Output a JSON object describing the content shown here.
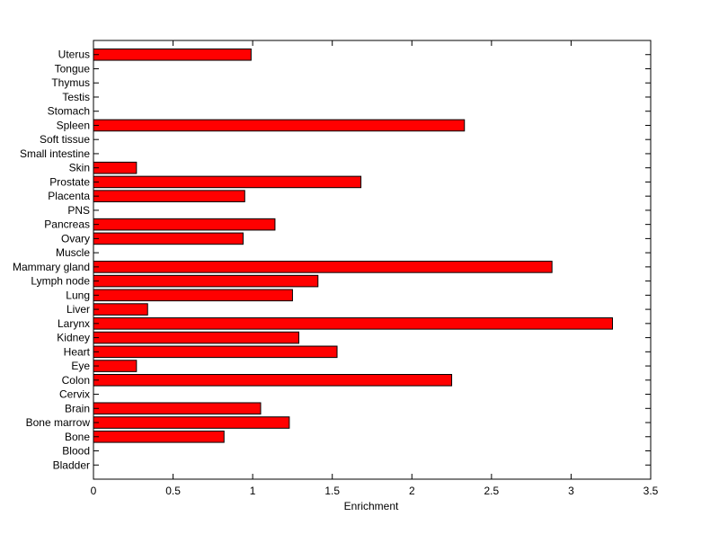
{
  "chart_data": {
    "type": "bar",
    "orientation": "horizontal",
    "title": "",
    "xlabel": "Enrichment",
    "ylabel": "",
    "xlim": [
      0,
      3.5
    ],
    "xticks": [
      "0",
      "0.5",
      "1",
      "1.5",
      "2",
      "2.5",
      "3",
      "3.5"
    ],
    "grid": false,
    "bar_color": "#ff0000",
    "bar_edge_color": "#000000",
    "categories": [
      "Bladder",
      "Blood",
      "Bone",
      "Bone marrow",
      "Brain",
      "Cervix",
      "Colon",
      "Eye",
      "Heart",
      "Kidney",
      "Larynx",
      "Liver",
      "Lung",
      "Lymph node",
      "Mammary gland",
      "Muscle",
      "Ovary",
      "Pancreas",
      "PNS",
      "Placenta",
      "Prostate",
      "Skin",
      "Small intestine",
      "Soft tissue",
      "Spleen",
      "Stomach",
      "Testis",
      "Thymus",
      "Tongue",
      "Uterus"
    ],
    "values": [
      0,
      0,
      0.82,
      1.23,
      1.05,
      0,
      2.25,
      0.27,
      1.53,
      1.29,
      3.26,
      0.34,
      1.25,
      1.41,
      2.88,
      0,
      0.94,
      1.14,
      0,
      0.95,
      1.68,
      0.27,
      0,
      0,
      2.33,
      0,
      0,
      0,
      0,
      0.99
    ]
  }
}
